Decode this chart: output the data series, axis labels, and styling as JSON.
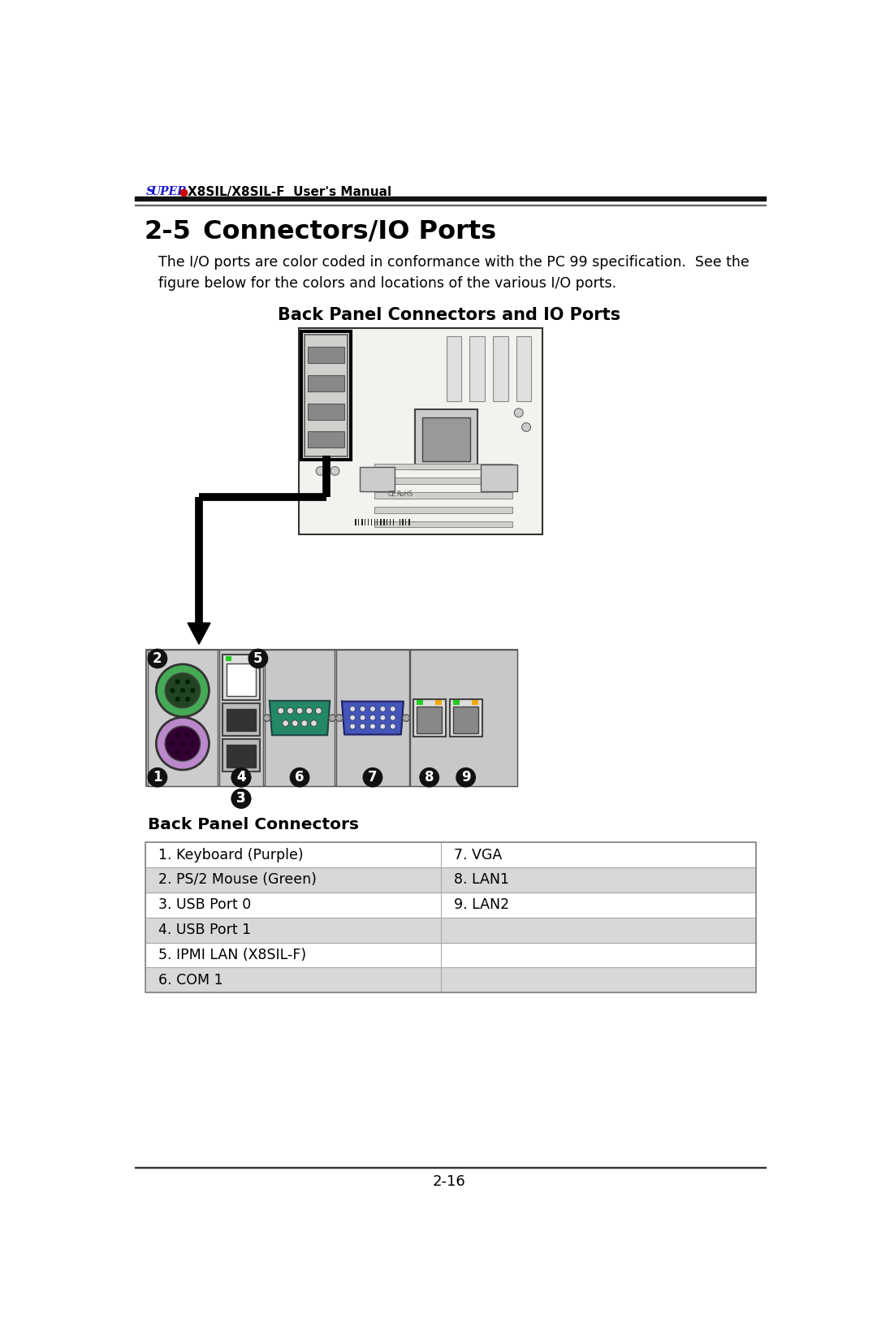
{
  "page_num": "2-16",
  "section_num": "2-5",
  "section_title": "Connectors/IO Ports",
  "body_text_line1": "The I/O ports are color coded in conformance with the PC 99 specification.  See the",
  "body_text_line2": "figure below for the colors and locations of the various I/O ports.",
  "sub_title": "Back Panel Connectors and IO Ports",
  "back_panel_label": "Back Panel Connectors",
  "table_rows": [
    [
      "1. Keyboard (Purple)",
      "7. VGA"
    ],
    [
      "2. PS/2 Mouse (Green)",
      "8. LAN1"
    ],
    [
      "3. USB Port 0",
      "9. LAN2"
    ],
    [
      "4. USB Port 1",
      ""
    ],
    [
      "5. IPMI LAN (X8SIL-F)",
      ""
    ],
    [
      "6. COM 1",
      ""
    ]
  ],
  "bg_color": "#ffffff",
  "text_color": "#000000",
  "super_color": "#1a1acc",
  "dot_color": "#cc0000",
  "connector_purple": "#bb88cc",
  "connector_green": "#44aa55",
  "connector_blue": "#4455bb",
  "connector_gray": "#aaaaaa",
  "connector_teal": "#228866",
  "table_alt_color": "#d8d8d8",
  "num_badge_color": "#111111"
}
